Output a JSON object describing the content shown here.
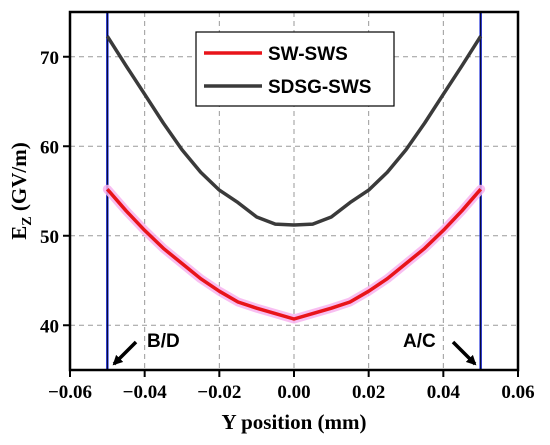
{
  "chart_data": {
    "type": "line",
    "xlabel": "Y position (mm)",
    "ylabel_main": "E",
    "ylabel_sub": "Z",
    "ylabel_rest": " (GV/m)",
    "xlim": [
      -0.06,
      0.06
    ],
    "ylim": [
      35,
      75
    ],
    "grid": true,
    "legend_position": "top-center",
    "x_ticks": [
      -0.06,
      -0.04,
      -0.02,
      0.0,
      0.02,
      0.04,
      0.06
    ],
    "x_tick_labels": [
      "−0.06",
      "−0.04",
      "−0.02",
      "0.00",
      "0.02",
      "0.04",
      "0.06"
    ],
    "y_ticks": [
      40,
      50,
      60,
      70
    ],
    "y_tick_labels": [
      "40",
      "50",
      "60",
      "70"
    ],
    "series": [
      {
        "name": "SW-SWS",
        "color": "#e8141a",
        "halo_color": "#f7b3ef",
        "x": [
          -0.05,
          -0.045,
          -0.04,
          -0.035,
          -0.03,
          -0.025,
          -0.02,
          -0.015,
          -0.01,
          -0.005,
          0.0,
          0.005,
          0.01,
          0.015,
          0.02,
          0.025,
          0.03,
          0.035,
          0.04,
          0.045,
          0.05
        ],
        "y": [
          55.2,
          52.8,
          50.6,
          48.6,
          46.9,
          45.2,
          43.8,
          42.6,
          41.9,
          41.3,
          40.7,
          41.3,
          41.9,
          42.6,
          43.8,
          45.2,
          46.9,
          48.6,
          50.6,
          52.8,
          55.2
        ]
      },
      {
        "name": "SDSG-SWS",
        "color": "#3a3a3a",
        "x": [
          -0.05,
          -0.045,
          -0.04,
          -0.035,
          -0.03,
          -0.025,
          -0.02,
          -0.015,
          -0.01,
          -0.005,
          0.0,
          0.005,
          0.01,
          0.015,
          0.02,
          0.025,
          0.03,
          0.035,
          0.04,
          0.045,
          0.05
        ],
        "y": [
          72.3,
          69.0,
          65.8,
          62.6,
          59.6,
          57.1,
          55.1,
          53.7,
          52.1,
          51.3,
          51.2,
          51.3,
          52.1,
          53.7,
          55.1,
          57.1,
          59.6,
          62.6,
          65.8,
          69.0,
          72.3
        ]
      }
    ],
    "boundaries": {
      "x": [
        -0.05,
        0.05
      ],
      "color": "#1f2fd9"
    },
    "annotations": [
      {
        "text": "B/D",
        "x": -0.05
      },
      {
        "text": "A/C",
        "x": 0.05
      }
    ]
  }
}
